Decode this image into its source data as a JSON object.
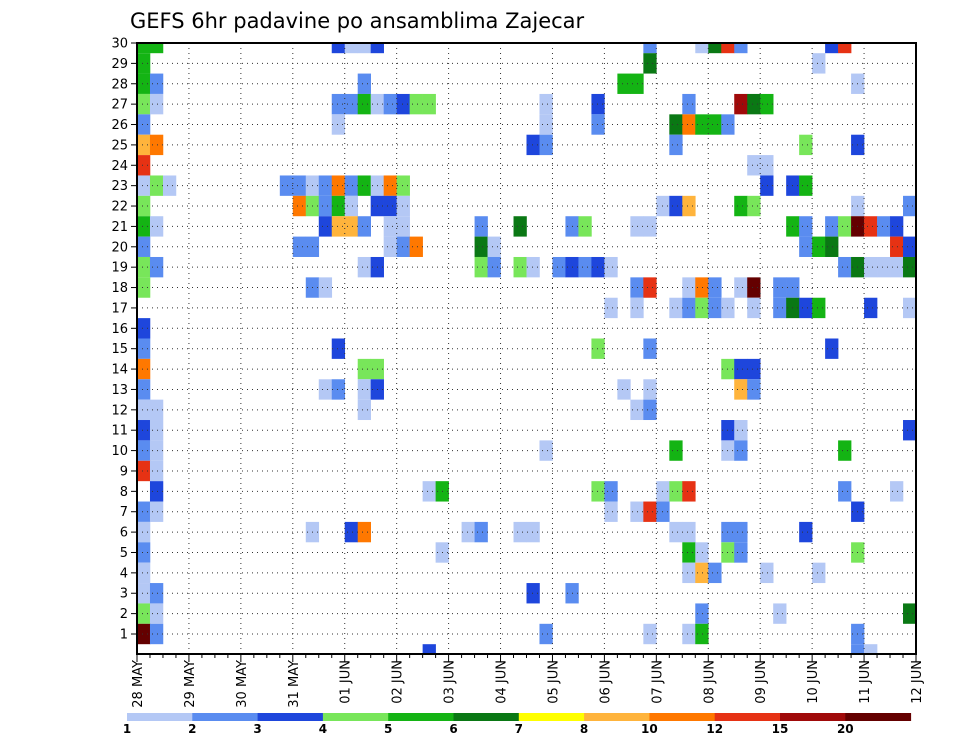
{
  "chart_data": {
    "type": "heatmap",
    "title": "GEFS 6hr padavine po ansamblima Zajecar",
    "xlabel": "",
    "ylabel": "",
    "x_tick_labels": [
      "28 MAY",
      "29 MAY",
      "30 MAY",
      "31 MAY",
      "01 JUN",
      "02 JUN",
      "03 JUN",
      "04 JUN",
      "05 JUN",
      "06 JUN",
      "07 JUN",
      "08 JUN",
      "09 JUN",
      "10 JUN",
      "11 JUN",
      "12 JUN"
    ],
    "y_tick_labels": [
      "1",
      "2",
      "3",
      "4",
      "5",
      "6",
      "7",
      "8",
      "9",
      "10",
      "11",
      "12",
      "13",
      "14",
      "15",
      "16",
      "17",
      "18",
      "19",
      "20",
      "21",
      "22",
      "23",
      "24",
      "25",
      "26",
      "27",
      "28",
      "29",
      "30"
    ],
    "x_range_steps": [
      0,
      60
    ],
    "y_range_members": [
      1,
      30
    ],
    "grid": true,
    "legend_position": "bottom",
    "color_levels": [
      1,
      2,
      3,
      4,
      5,
      6,
      7,
      8,
      10,
      12,
      15,
      20
    ],
    "colors": [
      "#b4c8f5",
      "#5a8cf0",
      "#1e46dc",
      "#78e65a",
      "#14b414",
      "#0a7814",
      "#ffff00",
      "#ffb43c",
      "#ff7800",
      "#e63214",
      "#a00a0a",
      "#640000"
    ],
    "cells": [
      [
        0,
        30,
        5
      ],
      [
        1,
        30,
        5
      ],
      [
        15,
        30,
        3
      ],
      [
        16,
        30,
        1
      ],
      [
        17,
        30,
        1
      ],
      [
        18,
        30,
        3
      ],
      [
        39,
        30,
        2
      ],
      [
        43,
        30,
        1
      ],
      [
        44,
        30,
        6
      ],
      [
        45,
        30,
        10
      ],
      [
        46,
        30,
        2
      ],
      [
        53,
        30,
        3
      ],
      [
        54,
        30,
        10
      ],
      [
        0,
        29,
        5
      ],
      [
        39,
        29,
        6
      ],
      [
        52,
        29,
        1
      ],
      [
        0,
        28,
        5
      ],
      [
        1,
        28,
        2
      ],
      [
        17,
        28,
        2
      ],
      [
        37,
        28,
        5
      ],
      [
        38,
        28,
        5
      ],
      [
        55,
        28,
        1
      ],
      [
        0,
        27,
        4
      ],
      [
        1,
        27,
        1
      ],
      [
        15,
        27,
        2
      ],
      [
        16,
        27,
        2
      ],
      [
        17,
        27,
        5
      ],
      [
        18,
        27,
        1
      ],
      [
        19,
        27,
        2
      ],
      [
        20,
        27,
        3
      ],
      [
        21,
        27,
        4
      ],
      [
        22,
        27,
        4
      ],
      [
        31,
        27,
        1
      ],
      [
        35,
        27,
        3
      ],
      [
        42,
        27,
        2
      ],
      [
        46,
        27,
        11
      ],
      [
        47,
        27,
        6
      ],
      [
        48,
        27,
        5
      ],
      [
        0,
        26,
        2
      ],
      [
        15,
        26,
        1
      ],
      [
        31,
        26,
        1
      ],
      [
        35,
        26,
        2
      ],
      [
        41,
        26,
        6
      ],
      [
        42,
        26,
        9
      ],
      [
        43,
        26,
        5
      ],
      [
        44,
        26,
        5
      ],
      [
        45,
        26,
        2
      ],
      [
        0,
        25,
        8
      ],
      [
        1,
        25,
        9
      ],
      [
        30,
        25,
        3
      ],
      [
        31,
        25,
        2
      ],
      [
        41,
        25,
        2
      ],
      [
        51,
        25,
        4
      ],
      [
        55,
        25,
        3
      ],
      [
        0,
        24,
        10
      ],
      [
        47,
        24,
        1
      ],
      [
        48,
        24,
        1
      ],
      [
        0,
        23,
        1
      ],
      [
        1,
        23,
        4
      ],
      [
        2,
        23,
        1
      ],
      [
        11,
        23,
        2
      ],
      [
        12,
        23,
        2
      ],
      [
        13,
        23,
        1
      ],
      [
        14,
        23,
        2
      ],
      [
        15,
        23,
        9
      ],
      [
        16,
        23,
        2
      ],
      [
        17,
        23,
        5
      ],
      [
        18,
        23,
        1
      ],
      [
        19,
        23,
        9
      ],
      [
        20,
        23,
        4
      ],
      [
        48,
        23,
        3
      ],
      [
        50,
        23,
        3
      ],
      [
        51,
        23,
        5
      ],
      [
        0,
        22,
        4
      ],
      [
        12,
        22,
        9
      ],
      [
        13,
        22,
        4
      ],
      [
        14,
        22,
        2
      ],
      [
        15,
        22,
        5
      ],
      [
        16,
        22,
        1
      ],
      [
        18,
        22,
        3
      ],
      [
        19,
        22,
        3
      ],
      [
        20,
        22,
        1
      ],
      [
        40,
        22,
        1
      ],
      [
        41,
        22,
        3
      ],
      [
        42,
        22,
        8
      ],
      [
        46,
        22,
        5
      ],
      [
        47,
        22,
        4
      ],
      [
        55,
        22,
        1
      ],
      [
        59,
        22,
        2
      ],
      [
        0,
        21,
        5
      ],
      [
        1,
        21,
        1
      ],
      [
        14,
        21,
        3
      ],
      [
        15,
        21,
        8
      ],
      [
        16,
        21,
        8
      ],
      [
        17,
        21,
        2
      ],
      [
        19,
        21,
        1
      ],
      [
        20,
        21,
        1
      ],
      [
        26,
        21,
        2
      ],
      [
        29,
        21,
        6
      ],
      [
        33,
        21,
        2
      ],
      [
        34,
        21,
        4
      ],
      [
        38,
        21,
        1
      ],
      [
        39,
        21,
        1
      ],
      [
        50,
        21,
        5
      ],
      [
        51,
        21,
        2
      ],
      [
        53,
        21,
        2
      ],
      [
        54,
        21,
        4
      ],
      [
        55,
        21,
        12
      ],
      [
        56,
        21,
        10
      ],
      [
        57,
        21,
        2
      ],
      [
        58,
        21,
        3
      ],
      [
        0,
        20,
        2
      ],
      [
        12,
        20,
        2
      ],
      [
        13,
        20,
        2
      ],
      [
        19,
        20,
        1
      ],
      [
        20,
        20,
        2
      ],
      [
        21,
        20,
        9
      ],
      [
        26,
        20,
        6
      ],
      [
        27,
        20,
        1
      ],
      [
        51,
        20,
        2
      ],
      [
        52,
        20,
        5
      ],
      [
        53,
        20,
        6
      ],
      [
        58,
        20,
        10
      ],
      [
        59,
        20,
        3
      ],
      [
        0,
        19,
        4
      ],
      [
        1,
        19,
        2
      ],
      [
        17,
        19,
        1
      ],
      [
        18,
        19,
        3
      ],
      [
        26,
        19,
        4
      ],
      [
        27,
        19,
        2
      ],
      [
        29,
        19,
        4
      ],
      [
        30,
        19,
        1
      ],
      [
        32,
        19,
        2
      ],
      [
        33,
        19,
        3
      ],
      [
        34,
        19,
        2
      ],
      [
        35,
        19,
        3
      ],
      [
        36,
        19,
        1
      ],
      [
        54,
        19,
        2
      ],
      [
        55,
        19,
        6
      ],
      [
        56,
        19,
        1
      ],
      [
        57,
        19,
        1
      ],
      [
        58,
        19,
        1
      ],
      [
        59,
        19,
        6
      ],
      [
        0,
        18,
        4
      ],
      [
        13,
        18,
        2
      ],
      [
        14,
        18,
        1
      ],
      [
        38,
        18,
        2
      ],
      [
        39,
        18,
        10
      ],
      [
        42,
        18,
        1
      ],
      [
        43,
        18,
        9
      ],
      [
        44,
        18,
        2
      ],
      [
        46,
        18,
        1
      ],
      [
        47,
        18,
        12
      ],
      [
        49,
        18,
        2
      ],
      [
        50,
        18,
        2
      ],
      [
        36,
        17,
        1
      ],
      [
        38,
        17,
        1
      ],
      [
        41,
        17,
        1
      ],
      [
        42,
        17,
        2
      ],
      [
        43,
        17,
        4
      ],
      [
        44,
        17,
        2
      ],
      [
        45,
        17,
        1
      ],
      [
        47,
        17,
        1
      ],
      [
        49,
        17,
        2
      ],
      [
        50,
        17,
        6
      ],
      [
        51,
        17,
        3
      ],
      [
        52,
        17,
        5
      ],
      [
        56,
        17,
        3
      ],
      [
        59,
        17,
        1
      ],
      [
        0,
        16,
        3
      ],
      [
        0,
        15,
        2
      ],
      [
        15,
        15,
        3
      ],
      [
        35,
        15,
        4
      ],
      [
        39,
        15,
        2
      ],
      [
        53,
        15,
        3
      ],
      [
        0,
        14,
        9
      ],
      [
        17,
        14,
        4
      ],
      [
        18,
        14,
        4
      ],
      [
        45,
        14,
        4
      ],
      [
        46,
        14,
        3
      ],
      [
        47,
        14,
        3
      ],
      [
        0,
        13,
        2
      ],
      [
        14,
        13,
        1
      ],
      [
        15,
        13,
        2
      ],
      [
        17,
        13,
        1
      ],
      [
        18,
        13,
        3
      ],
      [
        37,
        13,
        1
      ],
      [
        39,
        13,
        1
      ],
      [
        46,
        13,
        8
      ],
      [
        47,
        13,
        2
      ],
      [
        0,
        12,
        1
      ],
      [
        1,
        12,
        1
      ],
      [
        17,
        12,
        1
      ],
      [
        38,
        12,
        1
      ],
      [
        39,
        12,
        2
      ],
      [
        0,
        11,
        3
      ],
      [
        1,
        11,
        1
      ],
      [
        45,
        11,
        3
      ],
      [
        46,
        11,
        1
      ],
      [
        59,
        11,
        3
      ],
      [
        0,
        10,
        2
      ],
      [
        1,
        10,
        1
      ],
      [
        31,
        10,
        1
      ],
      [
        41,
        10,
        5
      ],
      [
        45,
        10,
        1
      ],
      [
        46,
        10,
        2
      ],
      [
        54,
        10,
        5
      ],
      [
        0,
        9,
        10
      ],
      [
        1,
        9,
        1
      ],
      [
        1,
        8,
        3
      ],
      [
        22,
        8,
        1
      ],
      [
        23,
        8,
        5
      ],
      [
        35,
        8,
        4
      ],
      [
        36,
        8,
        2
      ],
      [
        40,
        8,
        1
      ],
      [
        41,
        8,
        4
      ],
      [
        42,
        8,
        10
      ],
      [
        54,
        8,
        2
      ],
      [
        58,
        8,
        1
      ],
      [
        0,
        7,
        2
      ],
      [
        1,
        7,
        1
      ],
      [
        36,
        7,
        1
      ],
      [
        38,
        7,
        1
      ],
      [
        39,
        7,
        10
      ],
      [
        40,
        7,
        2
      ],
      [
        55,
        7,
        3
      ],
      [
        0,
        6,
        1
      ],
      [
        13,
        6,
        1
      ],
      [
        16,
        6,
        3
      ],
      [
        17,
        6,
        9
      ],
      [
        25,
        6,
        1
      ],
      [
        26,
        6,
        2
      ],
      [
        29,
        6,
        1
      ],
      [
        30,
        6,
        1
      ],
      [
        41,
        6,
        1
      ],
      [
        42,
        6,
        1
      ],
      [
        45,
        6,
        2
      ],
      [
        46,
        6,
        2
      ],
      [
        51,
        6,
        3
      ],
      [
        0,
        5,
        2
      ],
      [
        23,
        5,
        1
      ],
      [
        42,
        5,
        5
      ],
      [
        43,
        5,
        1
      ],
      [
        45,
        5,
        4
      ],
      [
        46,
        5,
        2
      ],
      [
        55,
        5,
        4
      ],
      [
        0,
        4,
        1
      ],
      [
        42,
        4,
        1
      ],
      [
        43,
        4,
        8
      ],
      [
        44,
        4,
        2
      ],
      [
        48,
        4,
        1
      ],
      [
        52,
        4,
        1
      ],
      [
        0,
        3,
        1
      ],
      [
        1,
        3,
        2
      ],
      [
        30,
        3,
        3
      ],
      [
        33,
        3,
        2
      ],
      [
        0,
        2,
        4
      ],
      [
        1,
        2,
        1
      ],
      [
        43,
        2,
        2
      ],
      [
        49,
        2,
        1
      ],
      [
        59,
        2,
        6
      ],
      [
        0,
        1,
        12
      ],
      [
        1,
        1,
        2
      ],
      [
        31,
        1,
        2
      ],
      [
        39,
        1,
        1
      ],
      [
        42,
        1,
        1
      ],
      [
        43,
        1,
        5
      ],
      [
        55,
        1,
        2
      ],
      [
        22,
        0,
        3
      ],
      [
        55,
        0,
        2
      ],
      [
        56,
        0,
        1
      ]
    ]
  }
}
